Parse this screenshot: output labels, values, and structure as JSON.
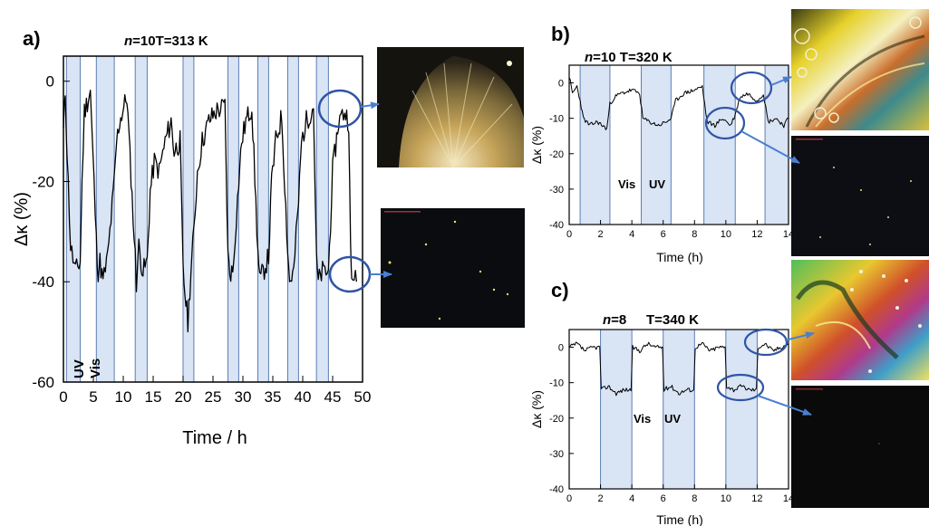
{
  "colors": {
    "shade": "#d9e4f5",
    "shade_edge": "#5b7fb3",
    "trace": "#000000",
    "circle": "#2f55a4",
    "arrow": "#4a7fd0"
  },
  "chart_data": [
    {
      "id": "a",
      "panel_label": "a)",
      "type": "line",
      "title_n": "n",
      "title_rest": "=10",
      "title_T": "T=313 K",
      "xlabel": "Time / h",
      "ylabel": "Δκ (%)",
      "xlim": [
        0,
        50
      ],
      "ylim": [
        -60,
        5
      ],
      "xticks": [
        0,
        5,
        10,
        15,
        20,
        25,
        30,
        35,
        40,
        45,
        50
      ],
      "yticks": [
        0,
        -20,
        -40,
        -60
      ],
      "annotations": [
        "UV",
        "Vis"
      ],
      "shaded_intervals": [
        [
          0.5,
          2.8
        ],
        [
          5.5,
          8.5
        ],
        [
          12.0,
          14.0
        ],
        [
          20.0,
          21.8
        ],
        [
          27.5,
          29.3
        ],
        [
          32.5,
          34.3
        ],
        [
          37.5,
          39.3
        ],
        [
          42.3,
          44.3
        ]
      ],
      "series": [
        {
          "x": [
            0,
            0.3,
            0.6,
            1.2,
            2.0,
            2.8,
            3.1,
            3.5,
            4.5,
            5.5,
            5.8,
            6.1,
            6.6,
            7.4,
            8.5,
            8.9,
            9.4,
            10.6,
            12.0,
            12.2,
            12.6,
            13.3,
            14.0,
            14.5,
            15.2,
            16.0,
            17.0,
            18.0,
            18.5,
            19.5,
            20.0,
            20.3,
            20.8,
            21.3,
            21.8,
            22.4,
            23.2,
            24.3,
            25.5,
            27.0,
            27.5,
            27.8,
            28.3,
            29.3,
            29.8,
            30.5,
            31.5,
            32.5,
            32.8,
            33.4,
            34.3,
            34.8,
            35.5,
            36.5,
            37.5,
            37.8,
            38.5,
            39.3,
            39.8,
            40.6,
            41.8,
            42.3,
            42.6,
            43.3,
            44.3,
            45.0,
            46.0,
            47.0,
            47.7,
            48.0,
            48.2,
            48.6,
            49.0
          ],
          "y": [
            -10,
            -2,
            -14,
            -33,
            -38,
            -36,
            -20,
            -6,
            -2,
            -32,
            -38,
            -36,
            -40,
            -35,
            -20,
            -12,
            -8,
            -3,
            -35,
            -40,
            -33,
            -38,
            -36,
            -22,
            -16,
            -18,
            -12,
            -8,
            -14,
            -12,
            -38,
            -42,
            -48,
            -38,
            -30,
            -18,
            -12,
            -8,
            -6,
            -5,
            -35,
            -38,
            -38,
            -20,
            -12,
            -8,
            -5,
            -34,
            -40,
            -38,
            -35,
            -20,
            -12,
            -7,
            -34,
            -40,
            -38,
            -24,
            -12,
            -8,
            -5,
            -36,
            -40,
            -38,
            -38,
            -18,
            -8,
            -6,
            -8,
            -34,
            -40,
            -38,
            -40
          ]
        }
      ]
    },
    {
      "id": "b",
      "panel_label": "b)",
      "type": "line",
      "title_n": "n",
      "title_rest": "=10 T=320 K",
      "xlabel": "Time (h)",
      "ylabel": "Δκ (%)",
      "xlim": [
        0,
        14
      ],
      "ylim": [
        -40,
        5
      ],
      "xticks": [
        0,
        2,
        4,
        6,
        8,
        10,
        12,
        14
      ],
      "yticks": [
        0,
        -10,
        -20,
        -30,
        -40
      ],
      "annotations": [
        "Vis",
        "UV"
      ],
      "shaded_intervals": [
        [
          0.7,
          2.6
        ],
        [
          4.6,
          6.5
        ],
        [
          8.6,
          10.6
        ],
        [
          12.5,
          14.0
        ]
      ],
      "series": [
        {
          "x": [
            0,
            0.2,
            0.5,
            0.7,
            0.9,
            1.3,
            1.8,
            2.4,
            2.6,
            2.9,
            3.3,
            4.0,
            4.5,
            4.7,
            5.1,
            5.7,
            6.2,
            6.5,
            6.8,
            7.3,
            8.0,
            8.5,
            8.8,
            9.3,
            9.8,
            10.3,
            10.6,
            10.9,
            11.4,
            12.0,
            12.4,
            12.7,
            13.2,
            13.7,
            14.0
          ],
          "y": [
            2,
            -3,
            -1,
            -5,
            -10,
            -12,
            -11,
            -13,
            -6,
            -4,
            -3,
            -2,
            -3,
            -10,
            -11,
            -12,
            -11,
            -10,
            -5,
            -3,
            -2,
            -1,
            -11,
            -12,
            -10,
            -12,
            -9,
            -4,
            -3,
            -5,
            -3,
            -11,
            -10,
            -12,
            -10
          ]
        }
      ]
    },
    {
      "id": "c",
      "panel_label": "c)",
      "type": "line",
      "title_n": "n",
      "title_rest": "=8",
      "title_T": "T=340 K",
      "xlabel": "Time (h)",
      "ylabel": "Δκ (%)",
      "xlim": [
        0,
        14
      ],
      "ylim": [
        -40,
        5
      ],
      "xticks": [
        0,
        2,
        4,
        6,
        8,
        10,
        12,
        14
      ],
      "yticks": [
        0,
        -10,
        -20,
        -30,
        -40
      ],
      "annotations": [
        "Vis",
        "UV"
      ],
      "shaded_intervals": [
        [
          2.0,
          4.0
        ],
        [
          6.0,
          8.0
        ],
        [
          10.0,
          12.0
        ]
      ],
      "series": [
        {
          "x": [
            0,
            0.5,
            1.0,
            1.5,
            1.95,
            2.05,
            2.5,
            3.0,
            3.5,
            3.95,
            4.05,
            4.5,
            5.0,
            5.5,
            5.95,
            6.05,
            6.5,
            7.0,
            7.5,
            7.95,
            8.05,
            8.5,
            9.0,
            9.5,
            9.95,
            10.05,
            10.5,
            11.0,
            11.5,
            11.95,
            12.05,
            12.5,
            13.0,
            13.5,
            14.0
          ],
          "y": [
            0,
            1,
            -1,
            0,
            0,
            -12,
            -11,
            -13,
            -12,
            -12,
            0,
            -1,
            1,
            0,
            0,
            -12,
            -11,
            -13,
            -12,
            -12,
            0,
            1,
            -1,
            0,
            0,
            -11,
            -12,
            -11,
            -12,
            -12,
            0,
            1,
            -1,
            0,
            1
          ]
        }
      ]
    }
  ]
}
